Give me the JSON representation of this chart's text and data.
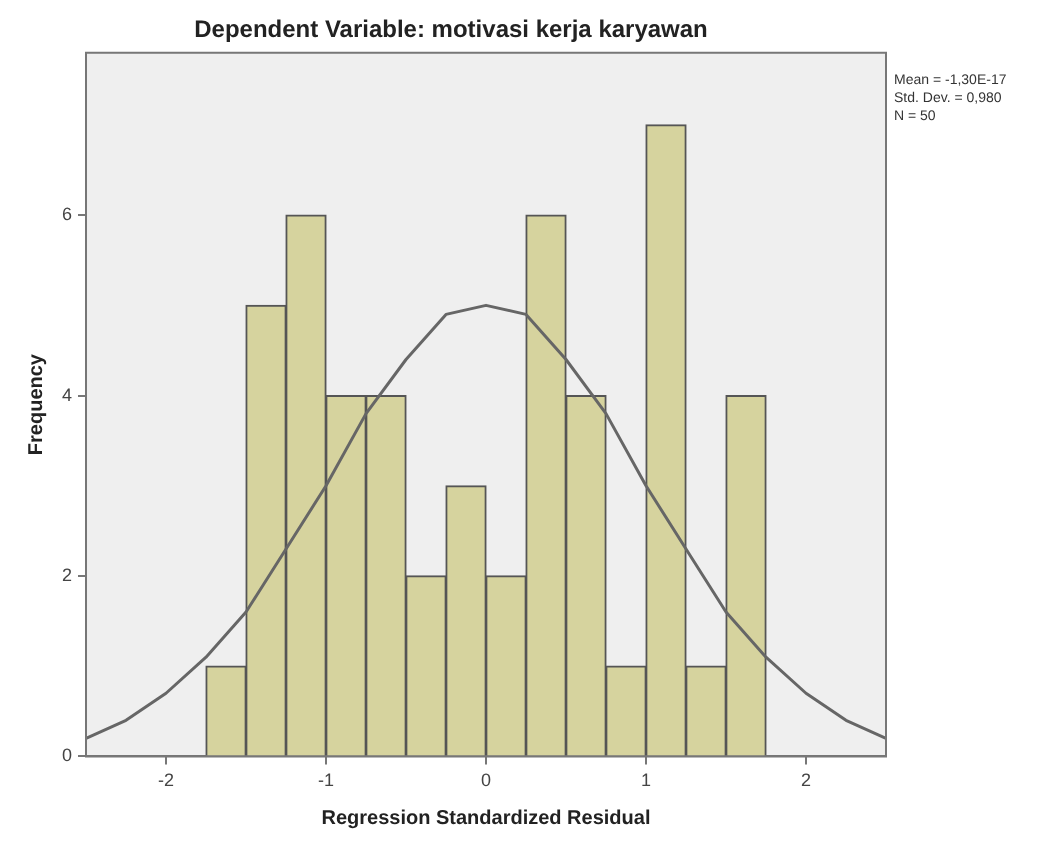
{
  "chart_data": {
    "type": "histogram",
    "title": "Dependent Variable: motivasi kerja karyawan",
    "xlabel": "Regression Standardized Residual",
    "ylabel": "Frequency",
    "series": [
      {
        "color": "#d6d39e",
        "bins": [
          -1.75,
          -1.5,
          -1.25,
          -1.0,
          -0.75,
          -0.5,
          -0.25,
          0,
          0.25,
          0.5,
          0.75,
          1.0,
          1.25,
          1.5,
          1.75
        ],
        "values": [
          1,
          5,
          6,
          4,
          4,
          2,
          3,
          2,
          6,
          4,
          1,
          7,
          1,
          4
        ]
      },
      {
        "type": "line",
        "color": "#666666",
        "x": [
          -2.5,
          -2.25,
          -2,
          -1.75,
          -1.5,
          -1.25,
          -1,
          -0.75,
          -0.5,
          -0.25,
          0,
          0.25,
          0.5,
          0.75,
          1,
          1.25,
          1.5,
          1.75,
          2,
          2.25,
          2.5
        ],
        "values": [
          0.2,
          0.4,
          0.7,
          1.1,
          1.6,
          2.3,
          3.0,
          3.8,
          4.4,
          4.9,
          5.0,
          4.9,
          4.4,
          3.8,
          3.0,
          2.3,
          1.6,
          1.1,
          0.7,
          0.4,
          0.2
        ]
      }
    ],
    "xlim": [
      -2.5,
      2.5
    ],
    "xticks": [
      -2,
      -1,
      0,
      1,
      2
    ],
    "ylim": [
      0,
      7.8
    ],
    "yticks": [
      0,
      2,
      4,
      6
    ],
    "grid": false,
    "legend": false,
    "annotations": [
      "Mean = -1,30E-17",
      "Std. Dev. = 0,980",
      "N = 50"
    ]
  }
}
